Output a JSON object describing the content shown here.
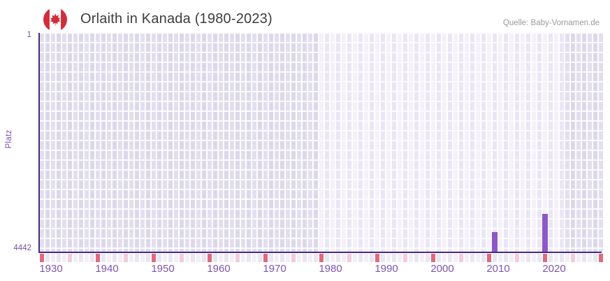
{
  "header": {
    "title": "Orlaith in Kanada (1980-2023)",
    "source": "Quelle: Baby-Vornamen.de",
    "flag_icon": "canada-flag-icon"
  },
  "y_axis_labels": {
    "top": "1",
    "bottom": "4442",
    "title": "Platz"
  },
  "chart_data": {
    "type": "bar",
    "title": "Orlaith in Kanada (1980-2023)",
    "xlabel": "",
    "ylabel": "Platz",
    "x_axis": {
      "first_year": 1930,
      "last_year": 2030,
      "ticks": [
        1930,
        1940,
        1950,
        1960,
        1970,
        1980,
        1990,
        2000,
        2010,
        2020
      ]
    },
    "y_axis": {
      "min_rank": 1,
      "max_rank": 4442,
      "inverted": true,
      "note": "rank 1 at top, rank 4442 at baseline"
    },
    "data_year_range": {
      "from": 1980,
      "to": 2023
    },
    "points": [
      {
        "year": 2011,
        "rank": 4037
      },
      {
        "year": 2020,
        "rank": 3679
      }
    ],
    "bottom_strip_marks": {
      "red_years_ending_in": 0,
      "pink_years_ending_in": 5
    },
    "legend": null,
    "grid": "checkered year columns, darker outside data range"
  },
  "colors": {
    "bar": "#8c58c8",
    "axis_line": "#472a7e",
    "tick_text": "#7b55b2",
    "y_text": "#7751ab",
    "title_text": "#3d3d3d",
    "source_text": "#9b9b9b",
    "grid_gap": "#fbfafd",
    "in_range_even": "#f4f1fb",
    "in_range_odd": "#eae6f5",
    "out_range_even": "#e2deef",
    "out_range_odd": "#dcd8ea",
    "strip_even": "#f2eff9",
    "strip_odd": "#e9e6f3",
    "strip_red": "#e0697b",
    "strip_pink": "#f3ccd9",
    "flag_red": "#d12d3a",
    "flag_white": "#ffffff"
  }
}
